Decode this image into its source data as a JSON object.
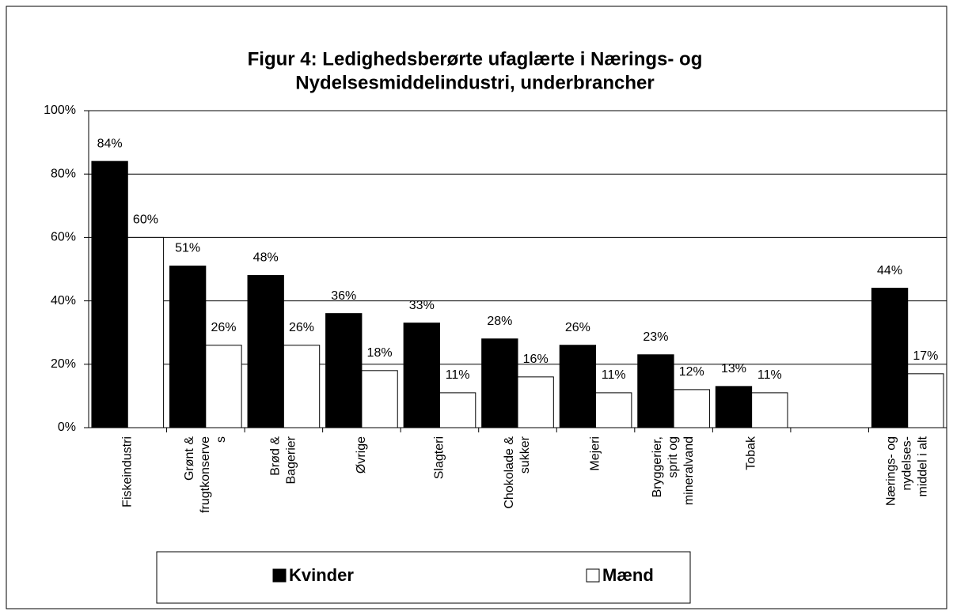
{
  "chart_data": {
    "type": "bar",
    "title": [
      "Figur 4: Ledighedsberørte ufaglærte i Nærings- og",
      "Nydelsesmiddelindustri, underbrancher"
    ],
    "categories": [
      "Fiskeindustri",
      "Grønt &\nfrugtkonserve\ns",
      "Brød &\nBagerier",
      "Øvrige",
      "Slagteri",
      "Chokolade &\nsukker",
      "Mejeri",
      "Bryggerier,\nsprit og\nmineralvand",
      "Tobak",
      null,
      "Nærings- og\nnydelses-\nmiddel i alt"
    ],
    "series": [
      {
        "name": "Kvinder",
        "color": "#000000",
        "values": [
          84,
          51,
          48,
          36,
          33,
          28,
          26,
          23,
          13,
          null,
          44
        ],
        "value_labels": [
          "84%",
          "51%",
          "48%",
          "36%",
          "33%",
          "28%",
          "26%",
          "23%",
          "13%",
          null,
          "44%"
        ]
      },
      {
        "name": "Mænd",
        "color": "#ffffff",
        "values": [
          60,
          26,
          26,
          18,
          11,
          16,
          11,
          12,
          11,
          null,
          17
        ],
        "value_labels": [
          "60%",
          "26%",
          "26%",
          "18%",
          "11%",
          "16%",
          "11%",
          "12%",
          "11%",
          null,
          "17%"
        ]
      }
    ],
    "ylim": [
      0,
      100
    ],
    "yticks": [
      {
        "value": 0,
        "label": "0%"
      },
      {
        "value": 20,
        "label": "20%"
      },
      {
        "value": 40,
        "label": "40%"
      },
      {
        "value": 60,
        "label": "60%"
      },
      {
        "value": 80,
        "label": "80%"
      },
      {
        "value": 100,
        "label": "100%"
      }
    ],
    "grid": true
  }
}
